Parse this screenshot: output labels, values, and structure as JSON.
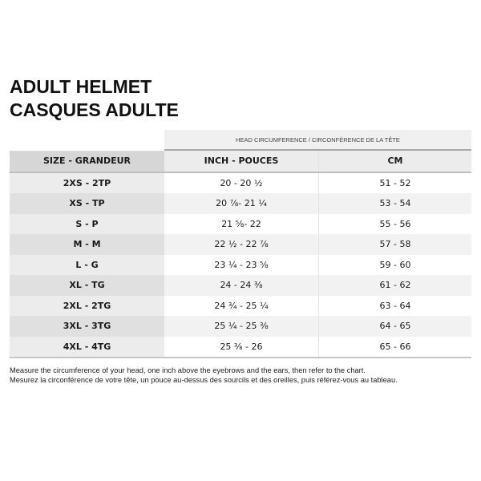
{
  "title": {
    "line1": "ADULT HELMET",
    "line2": "CASQUES ADULTE"
  },
  "table": {
    "group_header": "HEAD CIRCUMFERENCE / CIRCONFÉRENCE DE LA TÊTE",
    "columns": [
      "SIZE - GRANDEUR",
      "INCH - POUCES",
      "CM"
    ],
    "rows": [
      [
        "2XS - 2TP",
        "20 - 20 ½",
        "51 - 52"
      ],
      [
        "XS - TP",
        "20 ⅞- 21 ¼",
        "53 - 54"
      ],
      [
        "S - P",
        "21 ⅝- 22",
        "55 - 56"
      ],
      [
        "M - M",
        "22 ½ - 22 ⅞",
        "57 - 58"
      ],
      [
        "L - G",
        "23 ¼ - 23 ⅝",
        "59 - 60"
      ],
      [
        "XL - TG",
        "24 - 24 ⅜",
        "61 - 62"
      ],
      [
        "2XL - 2TG",
        "24 ¾ - 25 ¼",
        "63 - 64"
      ],
      [
        "3XL - 3TG",
        "25 ¼ - 25 ⅜",
        "64 - 65"
      ],
      [
        "4XL - 4TG",
        "25 ⅜ - 26",
        "65 - 66"
      ]
    ]
  },
  "notes": {
    "en": "Measure the circumference of your head, one inch above the eyebrows and the ears, then refer to the chart.",
    "fr": "Mesurez la circonférence de votre tête, un pouce au-dessus des sourcils et des oreilles, puis référez-vous au tableau."
  }
}
